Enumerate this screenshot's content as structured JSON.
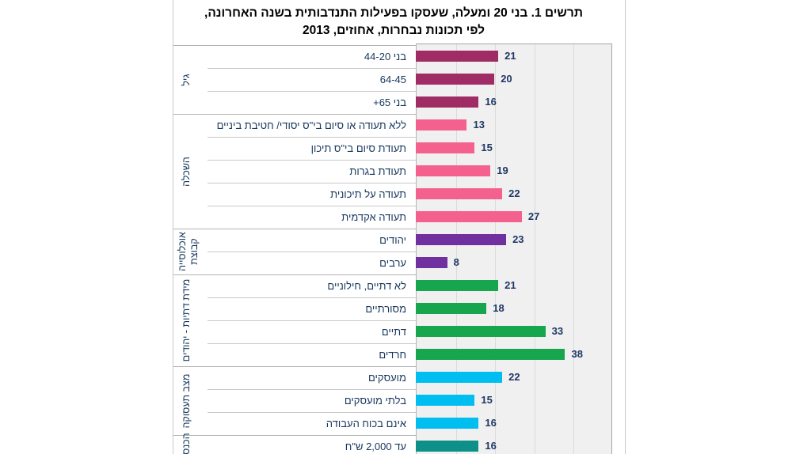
{
  "chart_data": {
    "type": "bar",
    "orientation": "horizontal",
    "title": "תרשים 1. בני 20 ומעלה, שעסקו בפעילות התנדבותית בשנה האחרונה, לפי תכונות נבחרות, אחוזים, 2013",
    "title_lines": [
      "תרשים 1. בני 20 ומעלה, שעסקו בפעילות התנדבותית בשנה האחרונה,",
      "לפי תכונות נבחרות, אחוזים, 2013"
    ],
    "value_axis": {
      "min": 0,
      "max": 50,
      "gridline_step": 10,
      "gridlines_visible": true
    },
    "legend": "none",
    "groups": [
      {
        "label": "גיל",
        "label_lines": [
          "גיל"
        ],
        "color": "#a02c66",
        "items": [
          {
            "label": "בני 44-20",
            "value": 21
          },
          {
            "label": "64-45",
            "value": 20
          },
          {
            "label": "בני 65+",
            "value": 16
          }
        ]
      },
      {
        "label": "השכלה",
        "label_lines": [
          "השכלה"
        ],
        "color": "#f4618f",
        "items": [
          {
            "label": "ללא תעודה או סיום בי\"ס יסודי/ חטיבת ביניים",
            "value": 13
          },
          {
            "label": "תעודת סיום בי\"ס תיכון",
            "value": 15
          },
          {
            "label": "תעודת בגרות",
            "value": 19
          },
          {
            "label": "תעודה על תיכונית",
            "value": 22
          },
          {
            "label": "תעודה אקדמית",
            "value": 27
          }
        ]
      },
      {
        "label": "קבוצת אוכלוסייה",
        "label_lines": [
          "קבוצת",
          "אוכלוסייה"
        ],
        "color": "#7030a0",
        "items": [
          {
            "label": "יהודים",
            "value": 23
          },
          {
            "label": "ערבים",
            "value": 8
          }
        ]
      },
      {
        "label": "מידת דתיות - יהודים",
        "label_lines": [
          "מידת דתיות - יהודים"
        ],
        "color": "#17a64d",
        "items": [
          {
            "label": "לא דתיים, חילוניים",
            "value": 21
          },
          {
            "label": "מסורתיים",
            "value": 18
          },
          {
            "label": "דתיים",
            "value": 33
          },
          {
            "label": "חרדים",
            "value": 38
          }
        ]
      },
      {
        "label": "מצב תעסוקה",
        "label_lines": [
          "מצב תעסוקה"
        ],
        "color": "#00bef0",
        "items": [
          {
            "label": "מועסקים",
            "value": 22
          },
          {
            "label": "בלתי מועסקים",
            "value": 15
          },
          {
            "label": "אינם בכוח העבודה",
            "value": 16
          }
        ]
      },
      {
        "label": "הכנסה",
        "label_lines": [
          "הכנסה"
        ],
        "color": "#0d9087",
        "items": [
          {
            "label": "עד 2,000 ש\"ח",
            "value": 16
          }
        ]
      }
    ],
    "style_colors": {
      "plot_background": "#f1f0f1",
      "gridline": "#dbdbdb",
      "value_label_text": "#1f3864",
      "category_label_text": "#17375d",
      "title_text": "#000000",
      "frame_border": "#c9c9c9"
    }
  }
}
